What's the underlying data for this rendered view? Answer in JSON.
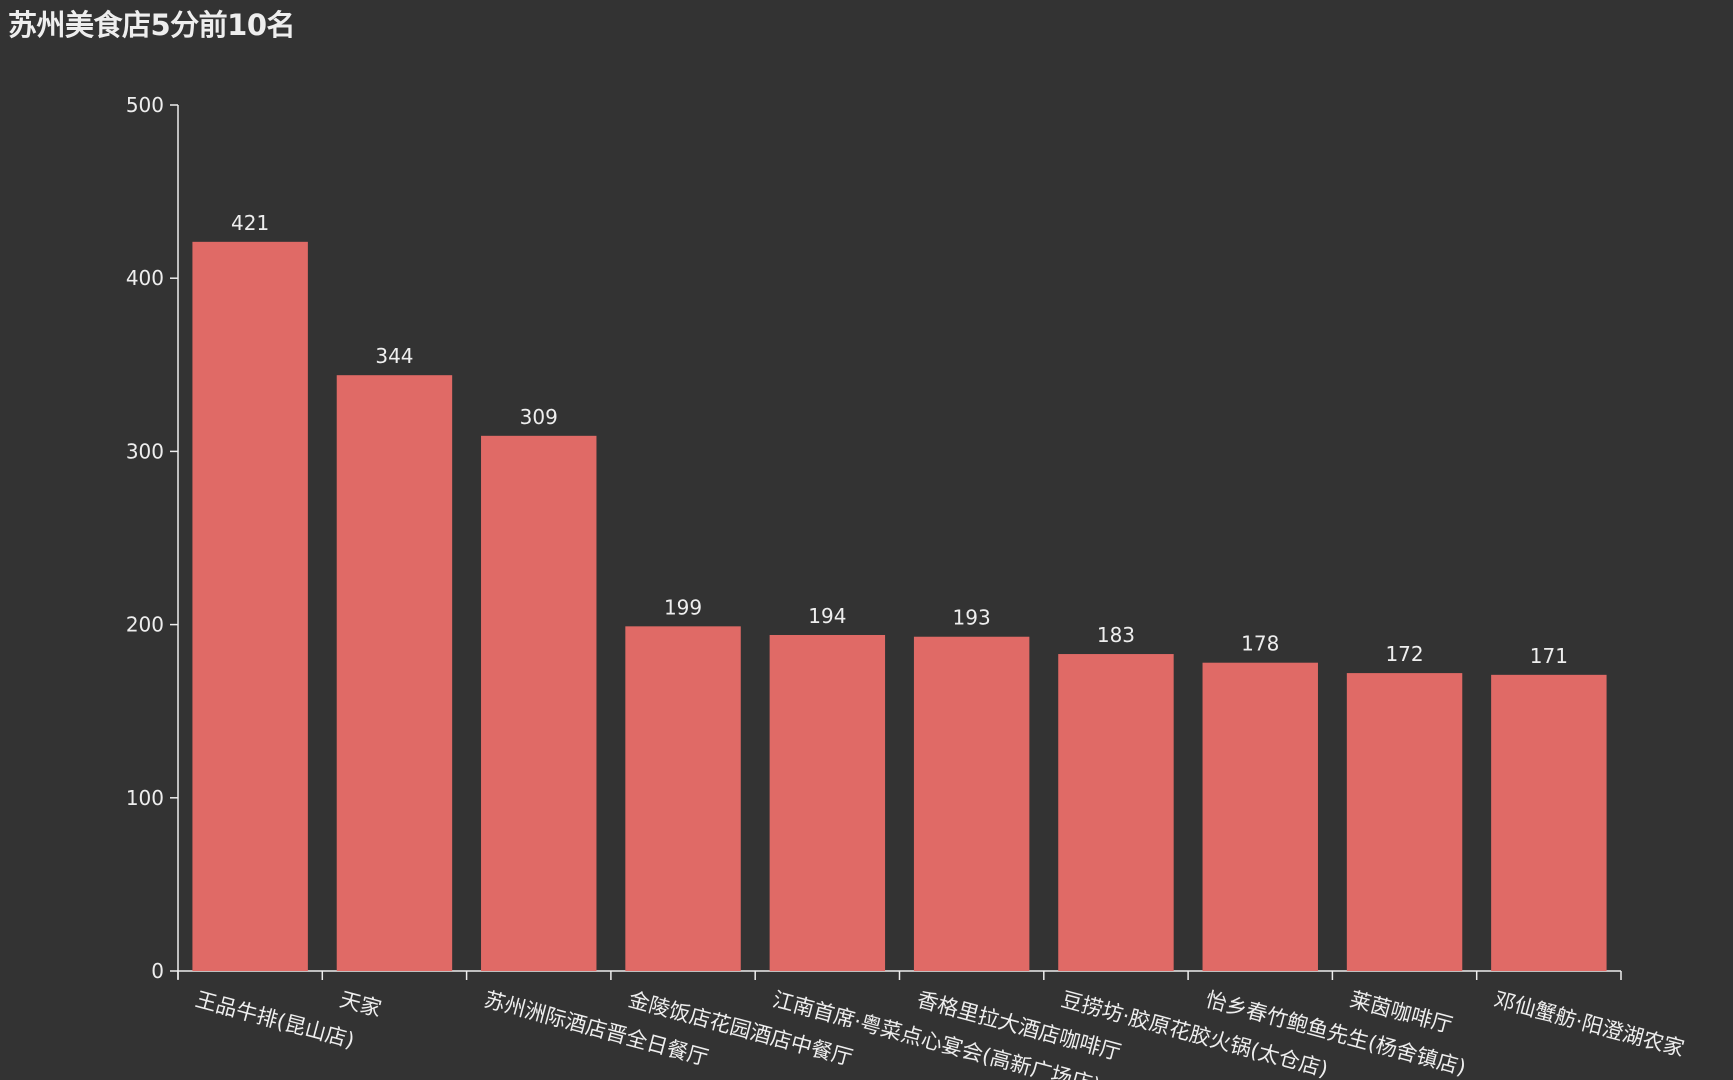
{
  "chart_data": {
    "type": "bar",
    "title": "苏州美食店5分前10名",
    "categories": [
      "王品牛排(昆山店)",
      "天家",
      "苏州洲际酒店晋全日餐厅",
      "金陵饭店花园酒店中餐厅",
      "江南首席·粤菜点心宴会(高新广场店)",
      "香格里拉大酒店咖啡厅",
      "豆捞坊·胶原花胶火锅(太仓店)",
      "怡乡春竹鲍鱼先生(杨舍镇店)",
      "莱茵咖啡厅",
      "邓仙蟹舫·阳澄湖农家"
    ],
    "values": [
      421,
      344,
      309,
      199,
      194,
      193,
      183,
      178,
      172,
      171
    ],
    "ylim": [
      0,
      500
    ],
    "yticks": [
      0,
      100,
      200,
      300,
      400,
      500
    ],
    "xlabel": "",
    "ylabel": "",
    "grid": false,
    "bar_color": "#e06a66",
    "axis_color": "#eeeeee",
    "background": "#333333"
  }
}
